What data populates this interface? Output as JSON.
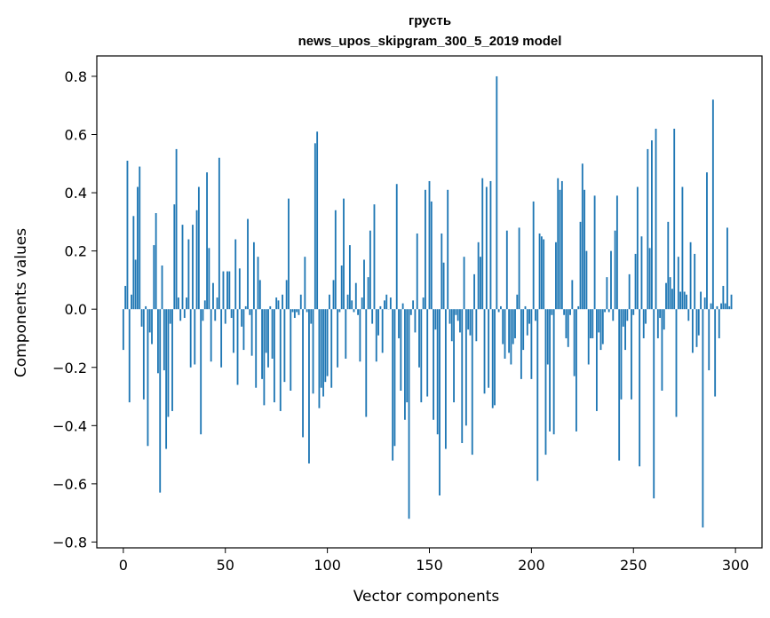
{
  "chart_data": {
    "type": "bar",
    "title": "грусть",
    "subtitle": "news_upos_skipgram_300_5_2019 model",
    "xlabel": "Vector components",
    "ylabel": "Components values",
    "xlim": [
      -13,
      313
    ],
    "ylim": [
      -0.82,
      0.87
    ],
    "xticks": [
      0,
      50,
      100,
      150,
      200,
      250,
      300
    ],
    "xtick_labels": [
      "0",
      "50",
      "100",
      "150",
      "200",
      "250",
      "300"
    ],
    "yticks": [
      -0.8,
      -0.6,
      -0.4,
      -0.2,
      0.0,
      0.2,
      0.4,
      0.6,
      0.8
    ],
    "ytick_labels": [
      "−0.8",
      "−0.6",
      "−0.4",
      "−0.2",
      "0.0",
      "0.2",
      "0.4",
      "0.6",
      "0.8"
    ],
    "bar_color": "#1f77b4",
    "grid": false,
    "legend": "none",
    "x_start": 0,
    "values": [
      -0.14,
      0.08,
      0.51,
      -0.32,
      0.05,
      0.32,
      0.17,
      0.42,
      0.49,
      -0.06,
      -0.31,
      0.01,
      -0.47,
      -0.08,
      -0.12,
      0.22,
      0.33,
      -0.22,
      -0.63,
      0.15,
      -0.21,
      -0.48,
      -0.37,
      -0.05,
      -0.35,
      0.36,
      0.55,
      0.04,
      -0.04,
      0.29,
      -0.03,
      0.04,
      0.24,
      -0.2,
      0.29,
      -0.19,
      0.34,
      0.42,
      -0.43,
      -0.04,
      0.03,
      0.47,
      0.21,
      -0.18,
      0.09,
      -0.04,
      0.04,
      0.52,
      -0.2,
      0.13,
      -0.05,
      0.13,
      0.13,
      -0.03,
      -0.15,
      0.24,
      -0.26,
      0.14,
      -0.06,
      -0.14,
      0.01,
      0.31,
      -0.02,
      -0.16,
      0.23,
      -0.27,
      0.18,
      0.1,
      -0.24,
      -0.33,
      -0.15,
      -0.2,
      0.01,
      -0.17,
      -0.32,
      0.04,
      0.03,
      -0.35,
      0.05,
      -0.25,
      0.1,
      0.38,
      -0.28,
      -0.01,
      -0.03,
      -0.01,
      -0.02,
      0.05,
      -0.44,
      0.18,
      -0.01,
      -0.53,
      -0.05,
      -0.29,
      0.57,
      0.61,
      -0.34,
      -0.27,
      -0.3,
      -0.25,
      -0.23,
      0.05,
      -0.27,
      0.1,
      0.34,
      -0.2,
      -0.01,
      0.15,
      0.38,
      -0.17,
      0.05,
      0.22,
      0.03,
      -0.01,
      0.09,
      -0.02,
      -0.18,
      0.04,
      0.17,
      -0.37,
      0.11,
      0.27,
      -0.05,
      0.36,
      -0.18,
      -0.09,
      0.01,
      -0.15,
      0.03,
      0.05,
      0.0,
      0.04,
      -0.52,
      -0.47,
      0.43,
      -0.1,
      -0.28,
      0.02,
      -0.38,
      -0.32,
      -0.72,
      -0.02,
      0.03,
      -0.08,
      0.26,
      -0.2,
      -0.32,
      0.04,
      0.41,
      -0.3,
      0.44,
      0.37,
      -0.38,
      -0.07,
      -0.43,
      -0.64,
      0.26,
      0.16,
      -0.48,
      0.41,
      -0.05,
      -0.11,
      -0.32,
      -0.02,
      -0.04,
      -0.08,
      -0.46,
      0.18,
      -0.4,
      -0.07,
      -0.09,
      -0.5,
      0.12,
      -0.11,
      0.23,
      0.18,
      0.45,
      -0.29,
      0.42,
      -0.27,
      0.44,
      -0.34,
      -0.33,
      0.8,
      -0.01,
      0.01,
      -0.12,
      -0.17,
      0.27,
      -0.15,
      -0.19,
      -0.12,
      -0.1,
      0.05,
      0.28,
      -0.24,
      -0.14,
      0.01,
      -0.09,
      -0.05,
      -0.24,
      0.37,
      -0.04,
      -0.59,
      0.26,
      0.25,
      0.24,
      -0.5,
      -0.19,
      -0.42,
      -0.02,
      -0.43,
      0.23,
      0.45,
      0.41,
      0.44,
      -0.02,
      -0.1,
      -0.13,
      -0.02,
      0.1,
      -0.23,
      -0.42,
      0.01,
      0.3,
      0.5,
      0.41,
      0.2,
      -0.19,
      -0.1,
      -0.1,
      0.39,
      -0.35,
      -0.08,
      -0.14,
      -0.12,
      -0.01,
      0.11,
      -0.01,
      0.2,
      -0.04,
      0.27,
      0.39,
      -0.52,
      -0.31,
      -0.06,
      -0.14,
      -0.04,
      0.12,
      -0.31,
      -0.02,
      0.19,
      0.42,
      -0.54,
      0.25,
      -0.1,
      -0.05,
      0.55,
      0.21,
      0.58,
      -0.65,
      0.62,
      -0.1,
      -0.03,
      -0.28,
      -0.07,
      0.09,
      0.3,
      0.11,
      0.07,
      0.62,
      -0.37,
      0.18,
      0.06,
      0.42,
      0.06,
      0.05,
      -0.04,
      0.23,
      -0.15,
      0.19,
      -0.13,
      -0.09,
      0.06,
      -0.75,
      0.04,
      0.47,
      -0.21,
      0.02,
      0.72,
      -0.3,
      0.01,
      -0.1,
      0.02,
      0.08,
      0.02,
      0.28,
      0.01,
      0.05
    ]
  }
}
